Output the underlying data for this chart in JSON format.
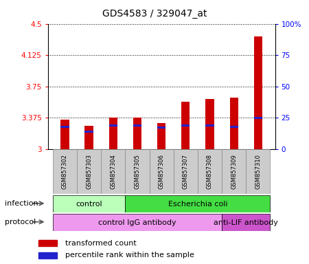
{
  "title": "GDS4583 / 329047_at",
  "samples": [
    "GSM857302",
    "GSM857303",
    "GSM857304",
    "GSM857305",
    "GSM857306",
    "GSM857307",
    "GSM857308",
    "GSM857309",
    "GSM857310"
  ],
  "transformed_count": [
    3.35,
    3.28,
    3.38,
    3.38,
    3.31,
    3.57,
    3.6,
    3.62,
    4.35
  ],
  "percentile_rank_pct": [
    18,
    14,
    19,
    19,
    17,
    19,
    19,
    18,
    25
  ],
  "ylim": [
    3.0,
    4.5
  ],
  "yticks": [
    3.0,
    3.375,
    3.75,
    4.125,
    4.5
  ],
  "ytick_labels": [
    "3",
    "3.375",
    "3.75",
    "4.125",
    "4.5"
  ],
  "y2ticks_pct": [
    0,
    25,
    50,
    75,
    100
  ],
  "y2tick_labels": [
    "0",
    "25",
    "50",
    "75",
    "100%"
  ],
  "bar_color": "#cc0000",
  "blue_color": "#2222cc",
  "infection_groups": [
    {
      "label": "control",
      "start": 0,
      "end": 3,
      "color": "#bbffbb"
    },
    {
      "label": "Escherichia coli",
      "start": 3,
      "end": 9,
      "color": "#44dd44"
    }
  ],
  "protocol_groups": [
    {
      "label": "control IgG antibody",
      "start": 0,
      "end": 7,
      "color": "#ee99ee"
    },
    {
      "label": "anti-LIF antibody",
      "start": 7,
      "end": 9,
      "color": "#cc55cc"
    }
  ],
  "legend_red": "transformed count",
  "legend_blue": "percentile rank within the sample",
  "infection_label": "infection",
  "protocol_label": "protocol",
  "bar_width": 0.35,
  "background_color": "#ffffff",
  "sample_bg_color": "#cccccc",
  "sample_border_color": "#888888"
}
